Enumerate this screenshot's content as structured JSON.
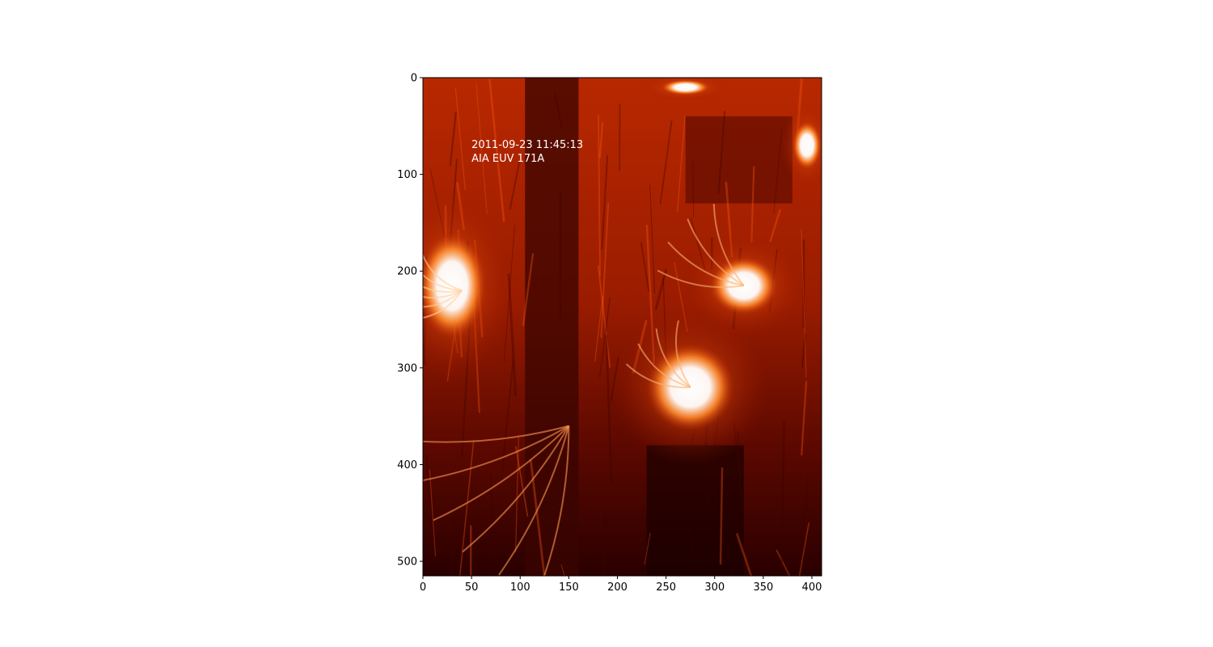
{
  "chart_data": {
    "type": "heatmap",
    "title": "",
    "xlabel": "",
    "ylabel": "",
    "xlim": [
      0,
      410
    ],
    "ylim": [
      515,
      0
    ],
    "x_ticks": [
      0,
      50,
      100,
      150,
      200,
      250,
      300,
      350,
      400
    ],
    "y_ticks": [
      0,
      100,
      200,
      300,
      400,
      500
    ],
    "colormap": "solar red (black → dark red → orange → white)",
    "colors": {
      "dark": "#2a0000",
      "mid": "#b02000",
      "bright": "#ff7a1a",
      "saturated": "#ffffff"
    },
    "annotations": [
      {
        "text": "2011-09-23 11:45:13",
        "x": 50,
        "y": 62
      },
      {
        "text": "AIA EUV 171A",
        "x": 50,
        "y": 76
      }
    ],
    "bright_regions": [
      {
        "name": "west loop arcade",
        "x": 30,
        "y": 215,
        "rx": 35,
        "ry": 55
      },
      {
        "name": "central active region",
        "x": 275,
        "y": 320,
        "rx": 45,
        "ry": 45
      },
      {
        "name": "north-east loops",
        "x": 330,
        "y": 215,
        "rx": 35,
        "ry": 30
      },
      {
        "name": "top bright patch",
        "x": 270,
        "y": 10,
        "rx": 25,
        "ry": 8
      },
      {
        "name": "east limb patch",
        "x": 395,
        "y": 70,
        "rx": 15,
        "ry": 25
      }
    ]
  }
}
